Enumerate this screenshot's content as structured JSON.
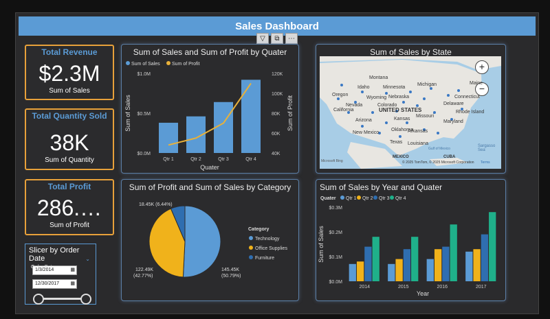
{
  "header": {
    "title": "Sales Dashboard"
  },
  "toolbar": {
    "filter": "▽",
    "focus": "⧉",
    "more": "⋯"
  },
  "kpis": {
    "revenue": {
      "title": "Total Revenue",
      "value": "$2.3M",
      "sub": "Sum of Sales"
    },
    "quantity": {
      "title": "Total Quantity Sold",
      "value": "38K",
      "sub": "Sum of Quantity"
    },
    "profit": {
      "title": "Total Profit",
      "value": "286.…",
      "sub": "Sum of Profit"
    }
  },
  "slicer": {
    "title": "Slicer by Order Date",
    "label": "Order Date",
    "start": "1/3/2014",
    "end": "12/30/2017"
  },
  "chart_data": [
    {
      "type": "bar",
      "title": "Sum of Sales and Sum of Profit by Quater",
      "categories": [
        "Qtr 1",
        "Qtr 2",
        "Qtr 3",
        "Qtr 4"
      ],
      "series": [
        {
          "name": "Sum of Sales",
          "values": [
            0.38,
            0.46,
            0.64,
            0.92
          ],
          "axis": "left"
        },
        {
          "name": "Sum of Profit",
          "values": [
            48,
            55,
            70,
            110
          ],
          "axis": "right",
          "kind": "line"
        }
      ],
      "xlabel": "Quater",
      "ylabel": "Sum of Sales",
      "y2label": "Sum of Profit",
      "yticks": [
        "$1.0M",
        "$0.5M",
        "$0.0M"
      ],
      "y2ticks": [
        "120K",
        "100K",
        "80K",
        "60K",
        "40K"
      ],
      "ylim": [
        0,
        1.0
      ],
      "y2lim": [
        40,
        120
      ],
      "colors": [
        "#5b9bd5",
        "#e8b13a"
      ]
    },
    {
      "type": "pie",
      "title": "Sum of Profit and Sum of Sales by Category",
      "legend_title": "Category",
      "labels": [
        "Technology",
        "Office Supplies",
        "Furniture"
      ],
      "values": [
        50.79,
        42.77,
        6.44
      ],
      "data_labels": [
        "145.45K\n(50.79%)",
        "122.49K\n(42.77%)",
        "18.45K (6.44%)"
      ],
      "colors": [
        "#5b9bd5",
        "#f0b21b",
        "#2f6eb0"
      ]
    },
    {
      "type": "bar",
      "title": "Sum of Sales by Year and Quater",
      "legend_title": "Quater",
      "categories": [
        "2014",
        "2015",
        "2016",
        "2017"
      ],
      "series": [
        {
          "name": "Qtr 1",
          "values": [
            0.07,
            0.07,
            0.09,
            0.12
          ]
        },
        {
          "name": "Qtr 2",
          "values": [
            0.08,
            0.09,
            0.13,
            0.13
          ]
        },
        {
          "name": "Qtr 3",
          "values": [
            0.14,
            0.13,
            0.14,
            0.19
          ]
        },
        {
          "name": "Qtr 4",
          "values": [
            0.18,
            0.18,
            0.23,
            0.28
          ]
        }
      ],
      "xlabel": "Year",
      "ylabel": "Sum of Sales",
      "yticks": [
        "$0.3M",
        "$0.2M",
        "$0.1M",
        "$0.0M"
      ],
      "ylim": [
        0,
        0.3
      ],
      "colors": [
        "#5b9bd5",
        "#f0b21b",
        "#2f6eb0",
        "#1fb08a"
      ]
    }
  ],
  "map": {
    "title": "Sum of Sales by State",
    "labels": [
      "Montana",
      "Idaho",
      "Minnesota",
      "Michigan",
      "Maine",
      "Oregon",
      "Wyoming",
      "Nebraska",
      "Connecticut",
      "Nevada",
      "Colorado",
      "UNITED STATES",
      "Delaware",
      "California",
      "Kansas",
      "Missouri",
      "Rhode Island",
      "Arizona",
      "Maryland",
      "Oklahoma",
      "New Mexico",
      "Arkansas",
      "Texas",
      "Louisiana",
      "MEXICO",
      "CUBA",
      "Sargasso Sea",
      "Gulf of Mexico"
    ],
    "zoom_in": "+",
    "zoom_out": "−",
    "copyright": "© 2025 TomTom, © 2025 Microsoft Corporation",
    "terms": "Terms",
    "bing": "Microsoft Bing"
  }
}
